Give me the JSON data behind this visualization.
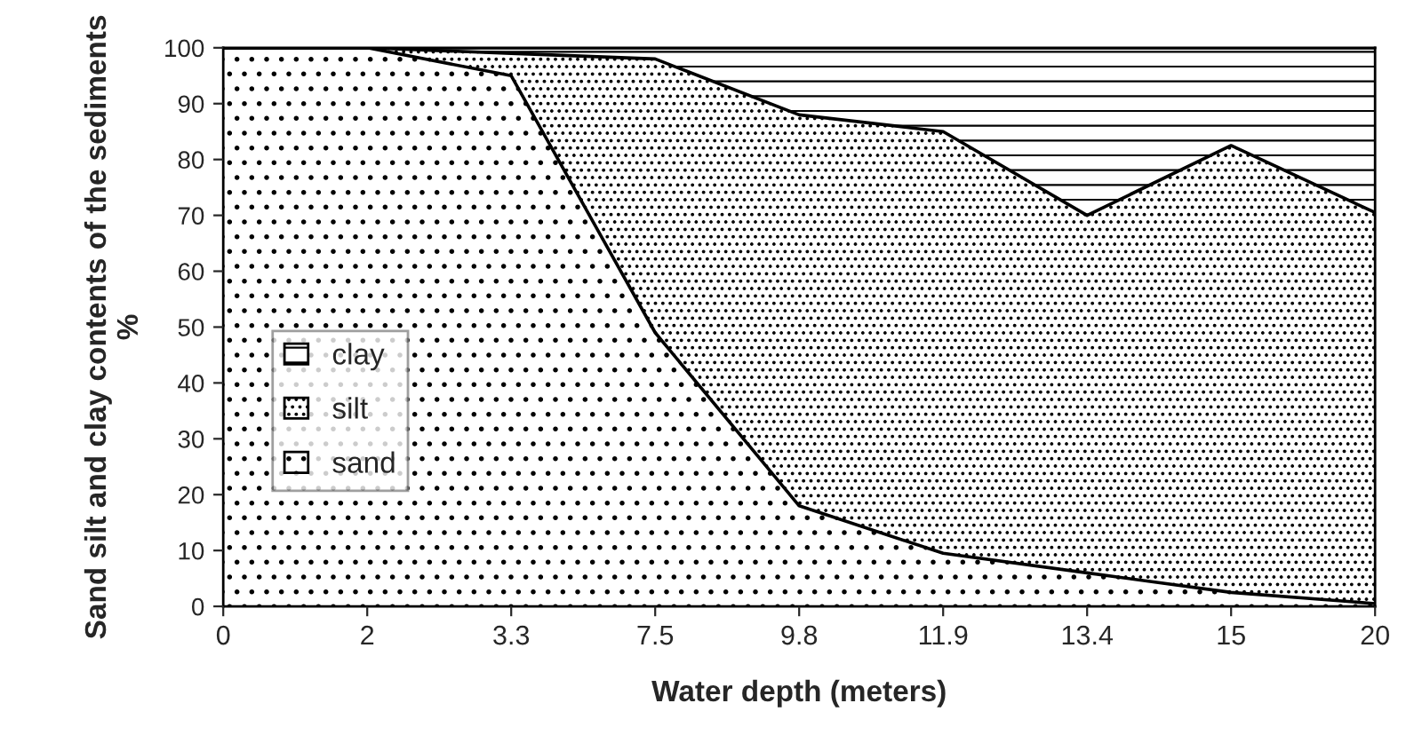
{
  "chart_data": {
    "type": "area",
    "stacked": true,
    "xlabel": "Water depth (meters)",
    "ylabel": "Sand silt and clay contents of the sediments %",
    "categories": [
      "0",
      "2",
      "3.3",
      "7.5",
      "9.8",
      "11.9",
      "13.4",
      "15",
      "20"
    ],
    "series": [
      {
        "name": "sand",
        "color": "#ffffff",
        "values": [
          100,
          100,
          95,
          49,
          18,
          9.5,
          6,
          2.5,
          0.5
        ]
      },
      {
        "name": "silt",
        "color": "#ffffff",
        "values": [
          0,
          0,
          4,
          49,
          70,
          75.5,
          64,
          80,
          70
        ]
      },
      {
        "name": "clay",
        "color": "#ffffff",
        "values": [
          0,
          0,
          1,
          2,
          12,
          15,
          30,
          17.5,
          29.5
        ]
      }
    ],
    "ylim": [
      0,
      100
    ],
    "yticks": [
      0,
      10,
      20,
      30,
      40,
      50,
      60,
      70,
      80,
      90,
      100
    ],
    "grid": false,
    "legend": "left"
  }
}
